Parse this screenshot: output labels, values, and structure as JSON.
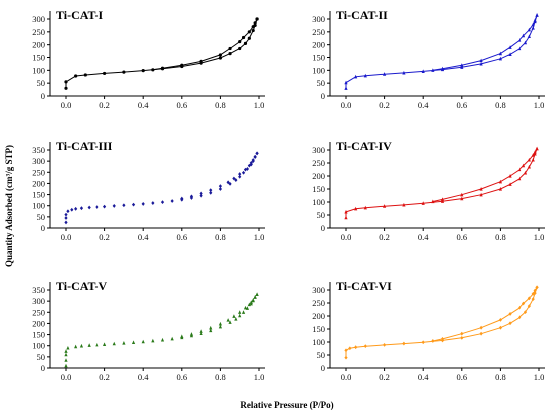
{
  "figure": {
    "xlabel": "Relative Pressure (P/Po)",
    "ylabel": "Quantity Adsorbed (cm³/g STP)"
  },
  "chart_data": [
    {
      "type": "line",
      "title": "Ti-CAT-I",
      "color": "#000000",
      "marker": "circle",
      "xlim": [
        0.0,
        1.0
      ],
      "ylim": [
        0,
        300
      ],
      "xticks": [
        0.0,
        0.2,
        0.4,
        0.6,
        0.8,
        1.0
      ],
      "yticks": [
        0,
        50,
        100,
        150,
        200,
        250,
        300
      ],
      "series": [
        {
          "x": [
            0.0,
            0.0,
            0.05,
            0.1,
            0.2,
            0.3,
            0.4,
            0.5,
            0.6,
            0.7,
            0.8,
            0.85,
            0.9,
            0.93,
            0.95,
            0.97,
            0.98,
            0.99
          ],
          "y": [
            30,
            55,
            78,
            82,
            88,
            93,
            99,
            106,
            115,
            128,
            148,
            165,
            185,
            205,
            225,
            255,
            275,
            300
          ]
        },
        {
          "x": [
            0.99,
            0.98,
            0.97,
            0.95,
            0.92,
            0.9,
            0.85,
            0.8,
            0.7,
            0.6,
            0.5,
            0.45
          ],
          "y": [
            300,
            285,
            270,
            250,
            228,
            212,
            185,
            160,
            135,
            120,
            108,
            102
          ]
        }
      ]
    },
    {
      "type": "line",
      "title": "Ti-CAT-II",
      "color": "#1a1acc",
      "marker": "triangle",
      "xlim": [
        0.0,
        1.0
      ],
      "ylim": [
        0,
        300
      ],
      "xticks": [
        0.0,
        0.2,
        0.4,
        0.6,
        0.8,
        1.0
      ],
      "yticks": [
        0,
        50,
        100,
        150,
        200,
        250,
        300
      ],
      "series": [
        {
          "x": [
            0.0,
            0.0,
            0.05,
            0.1,
            0.2,
            0.3,
            0.4,
            0.5,
            0.6,
            0.7,
            0.8,
            0.85,
            0.9,
            0.93,
            0.95,
            0.97,
            0.98,
            0.99
          ],
          "y": [
            30,
            52,
            75,
            79,
            85,
            90,
            96,
            103,
            112,
            125,
            145,
            162,
            185,
            208,
            232,
            265,
            290,
            315
          ]
        },
        {
          "x": [
            0.99,
            0.98,
            0.97,
            0.95,
            0.92,
            0.9,
            0.85,
            0.8,
            0.7,
            0.6,
            0.5,
            0.45
          ],
          "y": [
            315,
            295,
            278,
            258,
            235,
            218,
            190,
            165,
            138,
            120,
            106,
            100
          ]
        }
      ]
    },
    {
      "type": "scatter",
      "title": "Ti-CAT-III",
      "color": "#1a1a99",
      "marker": "diamond",
      "xlim": [
        0.0,
        1.0
      ],
      "ylim": [
        0,
        350
      ],
      "xticks": [
        0.0,
        0.2,
        0.4,
        0.6,
        0.8,
        1.0
      ],
      "yticks": [
        0,
        50,
        100,
        150,
        200,
        250,
        300,
        350
      ],
      "series": [
        {
          "x": [
            0.0,
            0.0,
            0.0,
            0.01,
            0.03,
            0.05,
            0.08,
            0.12,
            0.16,
            0.2,
            0.25,
            0.3,
            0.35,
            0.4,
            0.45,
            0.5,
            0.55,
            0.6,
            0.65,
            0.7,
            0.75,
            0.8,
            0.85,
            0.88,
            0.9,
            0.92,
            0.94,
            0.96,
            0.97,
            0.98,
            0.99
          ],
          "y": [
            25,
            45,
            60,
            75,
            82,
            86,
            89,
            92,
            94,
            96,
            99,
            102,
            105,
            108,
            112,
            116,
            121,
            127,
            135,
            145,
            158,
            175,
            198,
            215,
            230,
            248,
            265,
            285,
            300,
            318,
            335
          ]
        },
        {
          "x": [
            0.99,
            0.98,
            0.97,
            0.96,
            0.95,
            0.93,
            0.9,
            0.87,
            0.84,
            0.8,
            0.75,
            0.7,
            0.65,
            0.6
          ],
          "y": [
            335,
            320,
            305,
            292,
            280,
            262,
            242,
            222,
            205,
            188,
            170,
            155,
            142,
            132
          ]
        }
      ]
    },
    {
      "type": "line",
      "title": "Ti-CAT-IV",
      "color": "#dd1111",
      "marker": "triangle",
      "xlim": [
        0.0,
        1.0
      ],
      "ylim": [
        0,
        300
      ],
      "xticks": [
        0.0,
        0.2,
        0.4,
        0.6,
        0.8,
        1.0
      ],
      "yticks": [
        0,
        50,
        100,
        150,
        200,
        250,
        300
      ],
      "series": [
        {
          "x": [
            0.0,
            0.0,
            0.05,
            0.1,
            0.2,
            0.3,
            0.4,
            0.5,
            0.6,
            0.7,
            0.8,
            0.85,
            0.9,
            0.93,
            0.95,
            0.97,
            0.98,
            0.99
          ],
          "y": [
            40,
            62,
            74,
            78,
            84,
            89,
            95,
            103,
            113,
            128,
            150,
            168,
            190,
            212,
            235,
            262,
            285,
            305
          ]
        },
        {
          "x": [
            0.99,
            0.98,
            0.97,
            0.95,
            0.92,
            0.9,
            0.85,
            0.8,
            0.7,
            0.6,
            0.5,
            0.45
          ],
          "y": [
            305,
            292,
            280,
            262,
            240,
            225,
            200,
            178,
            150,
            128,
            110,
            102
          ]
        }
      ]
    },
    {
      "type": "scatter",
      "title": "Ti-CAT-V",
      "color": "#2a7a1a",
      "marker": "triangle",
      "xlim": [
        0.0,
        1.0
      ],
      "ylim": [
        0,
        350
      ],
      "xticks": [
        0.0,
        0.2,
        0.4,
        0.6,
        0.8,
        1.0
      ],
      "yticks": [
        0,
        50,
        100,
        150,
        200,
        250,
        300,
        350
      ],
      "series": [
        {
          "x": [
            0.0,
            0.0,
            0.0,
            0.0,
            0.01,
            0.05,
            0.08,
            0.12,
            0.16,
            0.2,
            0.25,
            0.3,
            0.35,
            0.4,
            0.45,
            0.5,
            0.55,
            0.6,
            0.65,
            0.7,
            0.75,
            0.8,
            0.85,
            0.88,
            0.9,
            0.92,
            0.94,
            0.96,
            0.97,
            0.98,
            0.99
          ],
          "y": [
            10,
            35,
            60,
            75,
            90,
            96,
            99,
            102,
            104,
            106,
            109,
            112,
            115,
            118,
            122,
            126,
            131,
            137,
            145,
            155,
            168,
            185,
            205,
            220,
            235,
            250,
            268,
            288,
            302,
            318,
            330
          ]
        },
        {
          "x": [
            0.99,
            0.98,
            0.97,
            0.96,
            0.95,
            0.93,
            0.9,
            0.87,
            0.84,
            0.8,
            0.75,
            0.7,
            0.65,
            0.6
          ],
          "y": [
            330,
            318,
            305,
            295,
            285,
            270,
            250,
            232,
            215,
            198,
            180,
            165,
            152,
            142
          ]
        }
      ]
    },
    {
      "type": "line",
      "title": "Ti-CAT-VI",
      "color": "#ff9a1a",
      "marker": "diamond",
      "xlim": [
        0.0,
        1.0
      ],
      "ylim": [
        0,
        300
      ],
      "xticks": [
        0.0,
        0.2,
        0.4,
        0.6,
        0.8,
        1.0
      ],
      "yticks": [
        0,
        50,
        100,
        150,
        200,
        250,
        300
      ],
      "series": [
        {
          "x": [
            0.0,
            0.0,
            0.02,
            0.05,
            0.1,
            0.2,
            0.3,
            0.4,
            0.5,
            0.6,
            0.7,
            0.8,
            0.85,
            0.9,
            0.93,
            0.95,
            0.97,
            0.98,
            0.99
          ],
          "y": [
            40,
            68,
            76,
            80,
            84,
            89,
            94,
            99,
            106,
            116,
            132,
            155,
            172,
            195,
            215,
            238,
            265,
            288,
            310
          ]
        },
        {
          "x": [
            0.99,
            0.98,
            0.97,
            0.95,
            0.92,
            0.9,
            0.85,
            0.8,
            0.7,
            0.6,
            0.5,
            0.45
          ],
          "y": [
            310,
            298,
            285,
            268,
            248,
            232,
            208,
            185,
            155,
            132,
            112,
            104
          ]
        }
      ]
    }
  ]
}
